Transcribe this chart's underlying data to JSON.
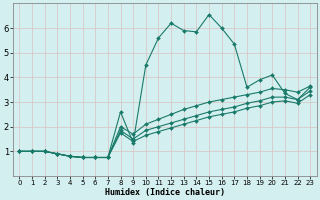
{
  "xlabel": "Humidex (Indice chaleur)",
  "bg_color": "#d4efef",
  "line_color": "#1a7a6a",
  "grid_color": "#c8e8e8",
  "xlim": [
    -0.5,
    23.5
  ],
  "ylim": [
    0,
    7
  ],
  "xticks": [
    0,
    1,
    2,
    3,
    4,
    5,
    6,
    7,
    8,
    9,
    10,
    11,
    12,
    13,
    14,
    15,
    16,
    17,
    18,
    19,
    20,
    21,
    22,
    23
  ],
  "yticks": [
    1,
    2,
    3,
    4,
    5,
    6
  ],
  "series_main": [
    [
      0,
      1
    ],
    [
      1,
      1
    ],
    [
      2,
      1
    ],
    [
      3,
      0.9
    ],
    [
      4,
      0.8
    ],
    [
      5,
      0.75
    ],
    [
      6,
      0.75
    ],
    [
      7,
      0.75
    ],
    [
      8,
      2.6
    ],
    [
      9,
      1.35
    ],
    [
      10,
      4.5
    ],
    [
      11,
      5.6
    ],
    [
      12,
      6.2
    ],
    [
      13,
      5.9
    ],
    [
      14,
      5.85
    ],
    [
      15,
      6.55
    ],
    [
      16,
      6.0
    ],
    [
      17,
      5.35
    ],
    [
      18,
      3.6
    ],
    [
      19,
      3.9
    ],
    [
      20,
      4.1
    ],
    [
      21,
      3.35
    ],
    [
      22,
      3.1
    ],
    [
      23,
      3.6
    ]
  ],
  "series_line1": [
    [
      0,
      1
    ],
    [
      1,
      1
    ],
    [
      2,
      1
    ],
    [
      3,
      0.9
    ],
    [
      4,
      0.8
    ],
    [
      5,
      0.75
    ],
    [
      6,
      0.75
    ],
    [
      7,
      0.75
    ],
    [
      8,
      2.0
    ],
    [
      9,
      1.7
    ],
    [
      10,
      2.1
    ],
    [
      11,
      2.3
    ],
    [
      12,
      2.5
    ],
    [
      13,
      2.7
    ],
    [
      14,
      2.85
    ],
    [
      15,
      3.0
    ],
    [
      16,
      3.1
    ],
    [
      17,
      3.2
    ],
    [
      18,
      3.3
    ],
    [
      19,
      3.4
    ],
    [
      20,
      3.55
    ],
    [
      21,
      3.5
    ],
    [
      22,
      3.4
    ],
    [
      23,
      3.65
    ]
  ],
  "series_line2": [
    [
      0,
      1
    ],
    [
      1,
      1
    ],
    [
      2,
      1
    ],
    [
      3,
      0.9
    ],
    [
      4,
      0.8
    ],
    [
      5,
      0.75
    ],
    [
      6,
      0.75
    ],
    [
      7,
      0.75
    ],
    [
      8,
      1.85
    ],
    [
      9,
      1.5
    ],
    [
      10,
      1.85
    ],
    [
      11,
      2.0
    ],
    [
      12,
      2.15
    ],
    [
      13,
      2.3
    ],
    [
      14,
      2.45
    ],
    [
      15,
      2.6
    ],
    [
      16,
      2.7
    ],
    [
      17,
      2.8
    ],
    [
      18,
      2.95
    ],
    [
      19,
      3.05
    ],
    [
      20,
      3.2
    ],
    [
      21,
      3.2
    ],
    [
      22,
      3.1
    ],
    [
      23,
      3.45
    ]
  ],
  "series_line3": [
    [
      0,
      1
    ],
    [
      1,
      1
    ],
    [
      2,
      1
    ],
    [
      3,
      0.9
    ],
    [
      4,
      0.8
    ],
    [
      5,
      0.75
    ],
    [
      6,
      0.75
    ],
    [
      7,
      0.75
    ],
    [
      8,
      1.75
    ],
    [
      9,
      1.4
    ],
    [
      10,
      1.65
    ],
    [
      11,
      1.8
    ],
    [
      12,
      1.95
    ],
    [
      13,
      2.1
    ],
    [
      14,
      2.25
    ],
    [
      15,
      2.4
    ],
    [
      16,
      2.5
    ],
    [
      17,
      2.6
    ],
    [
      18,
      2.75
    ],
    [
      19,
      2.85
    ],
    [
      20,
      3.0
    ],
    [
      21,
      3.05
    ],
    [
      22,
      2.95
    ],
    [
      23,
      3.3
    ]
  ]
}
